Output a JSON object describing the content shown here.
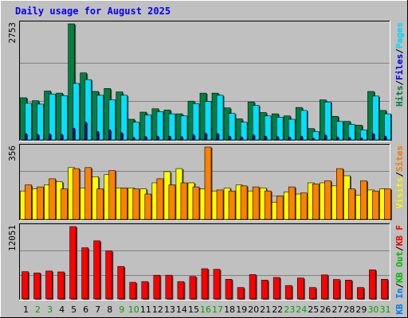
{
  "title": "Daily usage for August 2025",
  "colors": {
    "hits": "#008040",
    "files": "#0000ff",
    "pages": "#00e0ff",
    "visits": "#ffff00",
    "sites": "#ff8000",
    "kbin": "#0080ff",
    "kbout": "#00c000",
    "kbf": "#ff0000",
    "weekday_label": "#000000",
    "weekend_label": "#00a000",
    "background": "#c0c0c0",
    "grid": "#808080"
  },
  "chart_data": [
    {
      "type": "bar",
      "title": "Daily usage for August 2025",
      "panel": "hits-files-pages",
      "categories": [
        "1",
        "2",
        "3",
        "4",
        "5",
        "6",
        "7",
        "8",
        "9",
        "10",
        "11",
        "12",
        "13",
        "14",
        "15",
        "16",
        "17",
        "18",
        "19",
        "20",
        "21",
        "22",
        "23",
        "24",
        "25",
        "26",
        "27",
        "28",
        "29",
        "30",
        "31"
      ],
      "weekend_days": [
        "2",
        "3",
        "9",
        "10",
        "16",
        "17",
        "23",
        "24",
        "30",
        "31"
      ],
      "y_tick_label": "2753",
      "ylim": [
        0,
        2753
      ],
      "grid": true,
      "legend": "right",
      "legend_parts": [
        "Pages",
        "/",
        "Files",
        "/",
        "Hits"
      ],
      "series": [
        {
          "name": "Hits",
          "color": "#008040",
          "values": [
            1000,
            930,
            1160,
            1110,
            2753,
            1590,
            1150,
            1220,
            1140,
            490,
            660,
            740,
            710,
            620,
            920,
            1110,
            1110,
            760,
            500,
            900,
            650,
            620,
            570,
            770,
            270,
            950,
            560,
            440,
            350,
            1150,
            700
          ]
        },
        {
          "name": "Files",
          "color": "#0000ff",
          "values": [
            150,
            130,
            140,
            130,
            280,
            420,
            200,
            240,
            170,
            60,
            80,
            90,
            90,
            80,
            120,
            160,
            150,
            90,
            70,
            120,
            90,
            80,
            70,
            90,
            40,
            120,
            70,
            60,
            50,
            150,
            90
          ]
        },
        {
          "name": "Pages",
          "color": "#00e0ff",
          "values": [
            870,
            850,
            1090,
            1050,
            1340,
            1430,
            1060,
            950,
            1060,
            420,
            590,
            670,
            620,
            570,
            860,
            910,
            1060,
            630,
            420,
            820,
            570,
            540,
            490,
            700,
            200,
            900,
            440,
            370,
            240,
            1040,
            620
          ]
        }
      ]
    },
    {
      "type": "bar",
      "panel": "visits-sites",
      "categories": [
        "1",
        "2",
        "3",
        "4",
        "5",
        "6",
        "7",
        "8",
        "9",
        "10",
        "11",
        "12",
        "13",
        "14",
        "15",
        "16",
        "17",
        "18",
        "19",
        "20",
        "21",
        "22",
        "23",
        "24",
        "25",
        "26",
        "27",
        "28",
        "29",
        "30",
        "31"
      ],
      "y_tick_label": "356",
      "ylim": [
        0,
        356
      ],
      "grid": true,
      "legend": "right",
      "legend_parts": [
        "Sites",
        "/",
        "Visits"
      ],
      "series": [
        {
          "name": "Visits",
          "color": "#ffff00",
          "values": [
            140,
            150,
            170,
            185,
            255,
            155,
            210,
            220,
            155,
            155,
            150,
            180,
            235,
            250,
            180,
            150,
            140,
            155,
            170,
            140,
            155,
            85,
            135,
            125,
            180,
            180,
            165,
            215,
            120,
            145,
            150
          ]
        },
        {
          "name": "Sites",
          "color": "#ff8000",
          "values": [
            170,
            160,
            200,
            150,
            250,
            255,
            150,
            240,
            155,
            150,
            125,
            200,
            170,
            180,
            160,
            356,
            145,
            140,
            165,
            160,
            140,
            115,
            160,
            130,
            175,
            190,
            250,
            150,
            190,
            140,
            150
          ]
        }
      ]
    },
    {
      "type": "bar",
      "panel": "kb",
      "categories": [
        "1",
        "2",
        "3",
        "4",
        "5",
        "6",
        "7",
        "8",
        "9",
        "10",
        "11",
        "12",
        "13",
        "14",
        "15",
        "16",
        "17",
        "18",
        "19",
        "20",
        "21",
        "22",
        "23",
        "24",
        "25",
        "26",
        "27",
        "28",
        "29",
        "30",
        "31"
      ],
      "y_tick_label": "12051",
      "ylim": [
        0,
        12051
      ],
      "grid": true,
      "legend": "right",
      "legend_parts": [
        "KB F",
        "/",
        "KB Out",
        "/",
        "KB In"
      ],
      "series": [
        {
          "name": "KB F",
          "color": "#ff0000",
          "values": [
            4540,
            4330,
            4650,
            4500,
            12051,
            8520,
            9680,
            7990,
            5410,
            2770,
            2890,
            3950,
            3950,
            2890,
            3740,
            5030,
            4930,
            3270,
            1900,
            4060,
            3130,
            3580,
            2240,
            3480,
            1900,
            4000,
            3240,
            3130,
            1900,
            4840,
            3270
          ]
        }
      ]
    }
  ]
}
